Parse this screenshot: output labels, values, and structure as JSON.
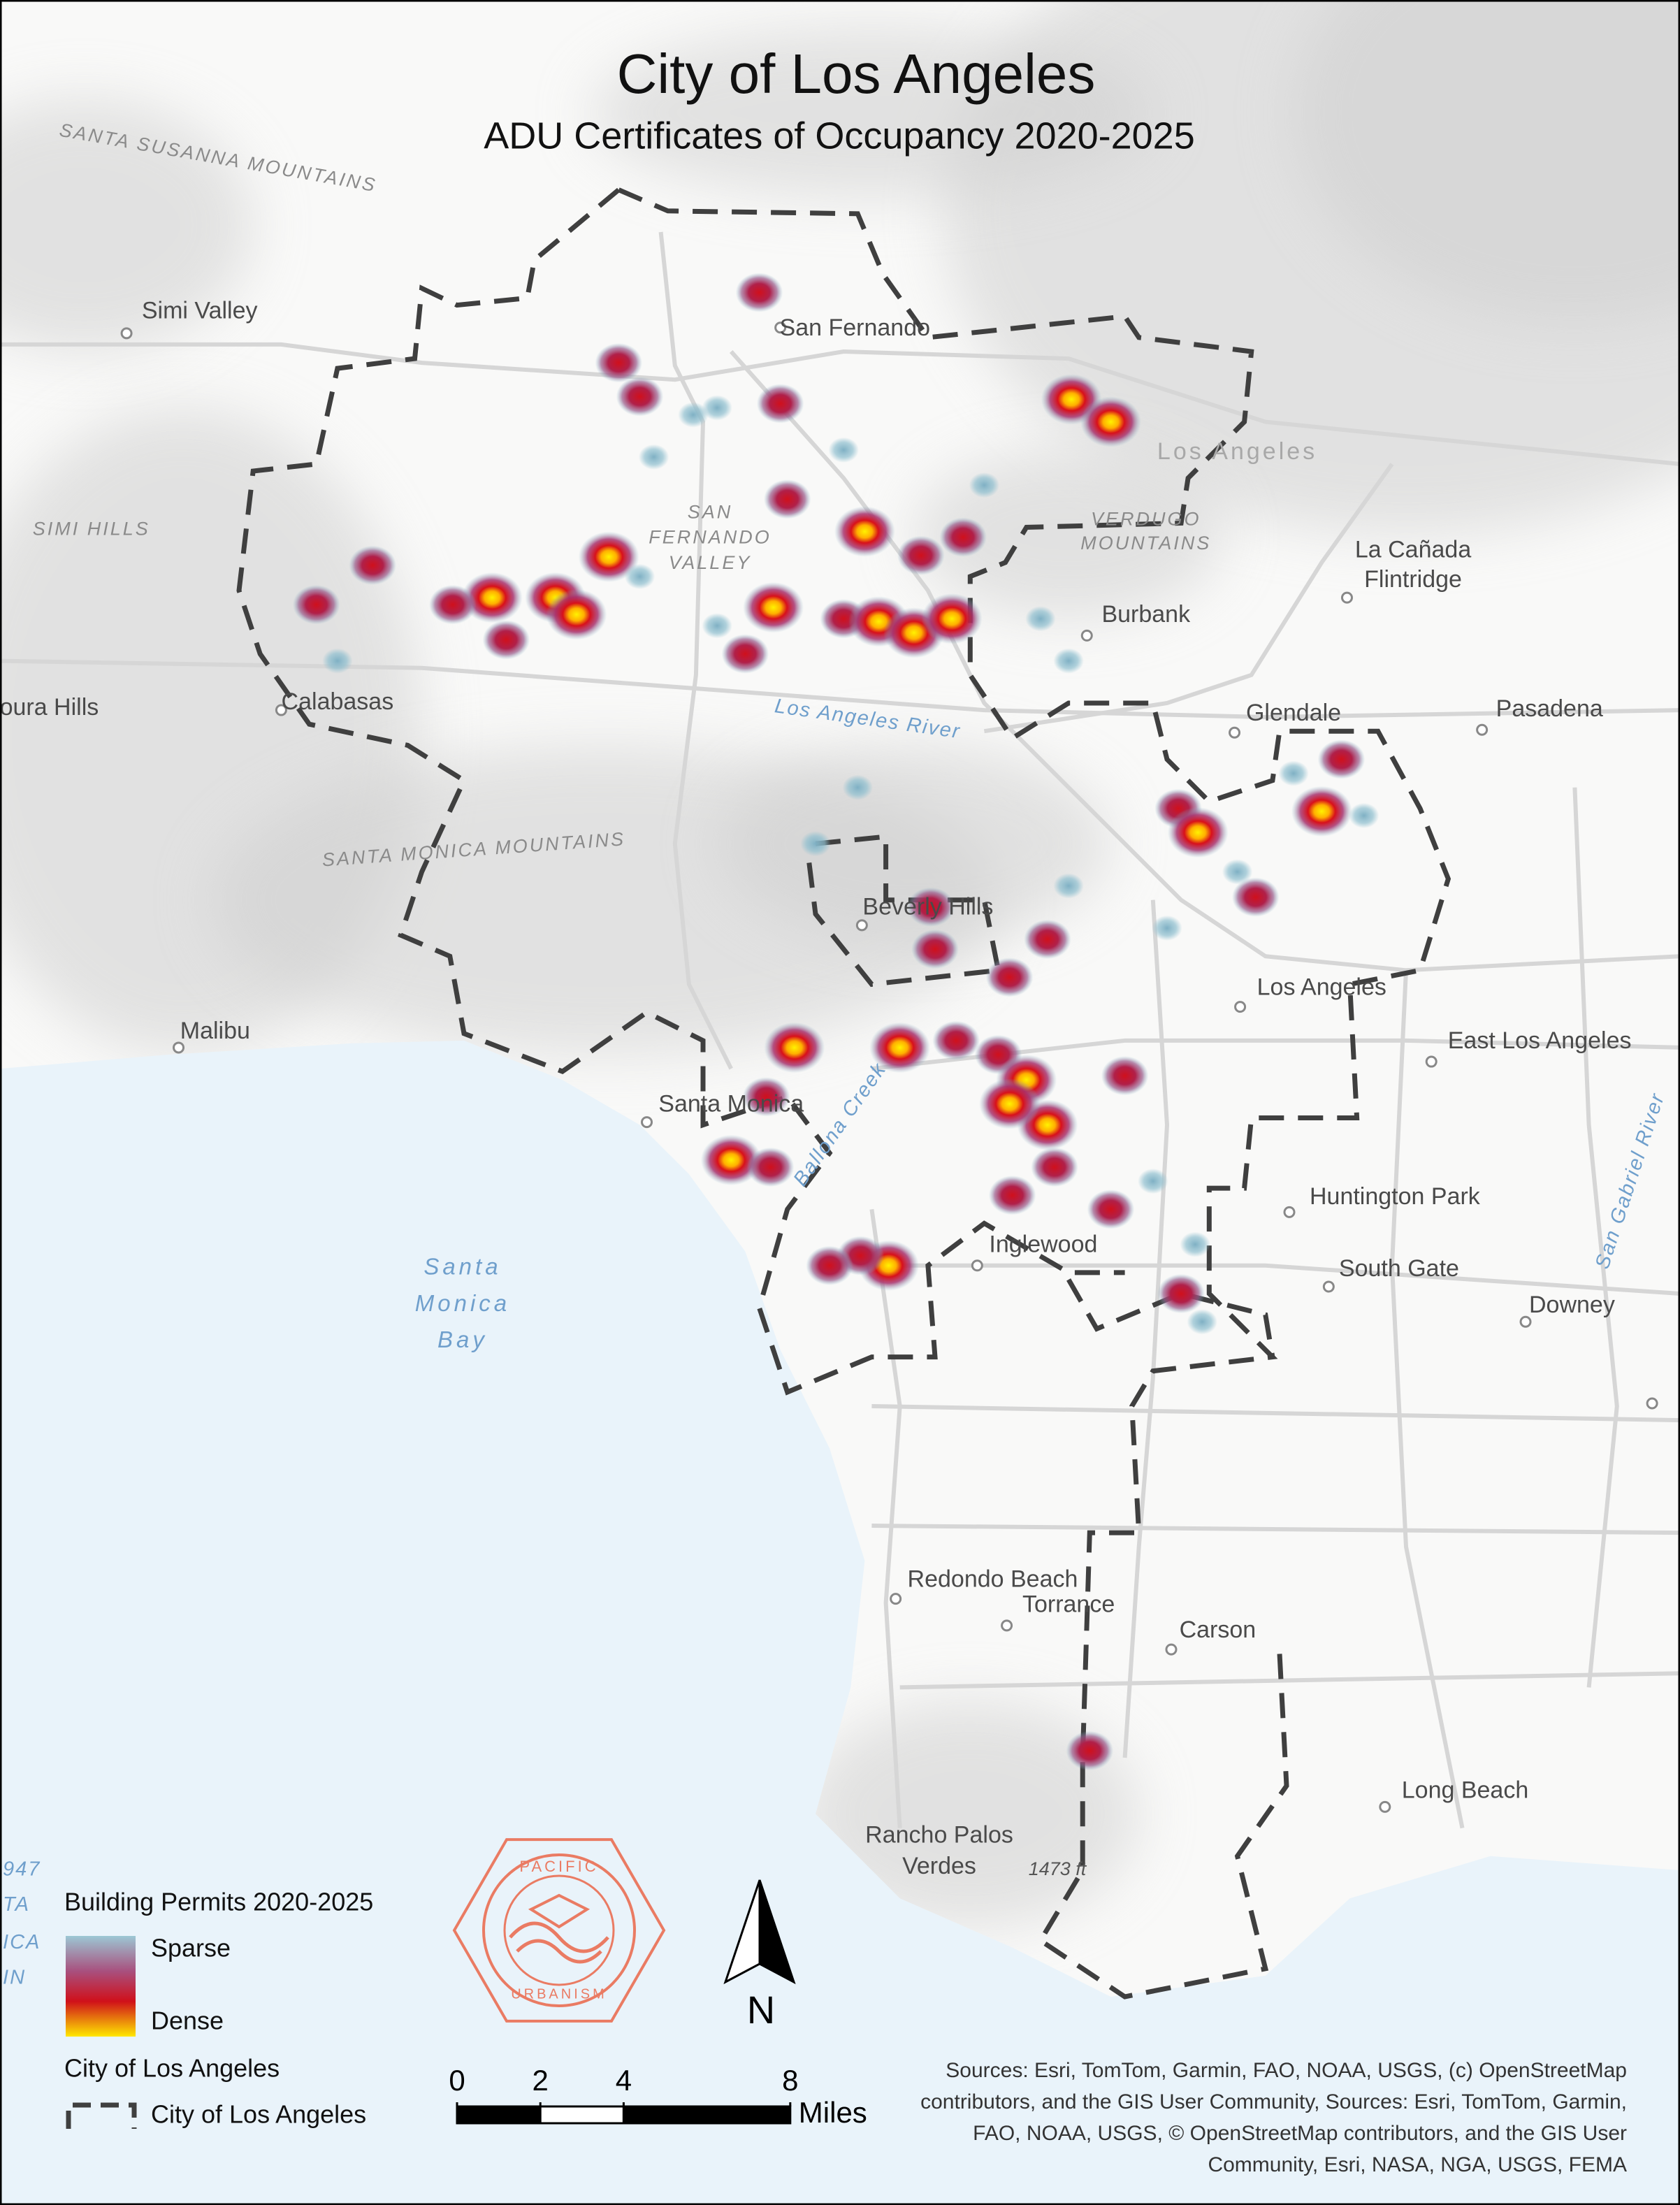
{
  "title": "City of Los Angeles",
  "subtitle": "ADU Certificates of Occupancy 2020-2025",
  "map_labels": [
    "SANTA SUSANNA MOUNTAINS",
    "Simi Valley",
    "SIMI HILLS",
    "oura Hills",
    "Calabasas",
    "San Fernando",
    "SAN",
    "FERNANDO",
    "VALLEY",
    "Los Angeles",
    "VERDUGO",
    "MOUNTAINS",
    "La Cañada",
    "Flintridge",
    "Burbank",
    "Los Angeles River",
    "Glendale",
    "Pasadena",
    "SANTA MONICA MOUNTAINS",
    "Beverly Hills",
    "Los Angeles",
    "East Los Angeles",
    "Malibu",
    "Santa Monica",
    "Ballona Creek",
    "Huntington Park",
    "San Gabriel River",
    "Santa",
    "Monica",
    "Bay",
    "Inglewood",
    "South Gate",
    "Downey",
    "Redondo Beach",
    "Torrance",
    "Carson",
    "Long Beach",
    "Rancho Palos",
    "Verdes",
    "1473 ft",
    "947",
    "TA",
    "ICA",
    "IN"
  ],
  "legend": {
    "heatmap_title": "Building Permits 2020-2025",
    "sparse": "Sparse",
    "dense": "Dense",
    "boundary_title": "City of Los Angeles",
    "boundary_item": "City of Los Angeles"
  },
  "scale_bar": {
    "ticks": [
      0,
      2,
      4,
      8
    ],
    "unit": "Miles"
  },
  "north_arrow": "N",
  "logo": {
    "top": "PACIFIC",
    "bottom": "URBANISM"
  },
  "sources": [
    "Sources:  Esri, TomTom, Garmin, FAO, NOAA, USGS, (c) OpenStreetMap",
    "contributors, and the GIS User Community, Sources: Esri, TomTom, Garmin,",
    "FAO, NOAA, USGS, © OpenStreetMap contributors, and the GIS User",
    "Community, Esri, NASA, NGA, USGS, FEMA"
  ]
}
